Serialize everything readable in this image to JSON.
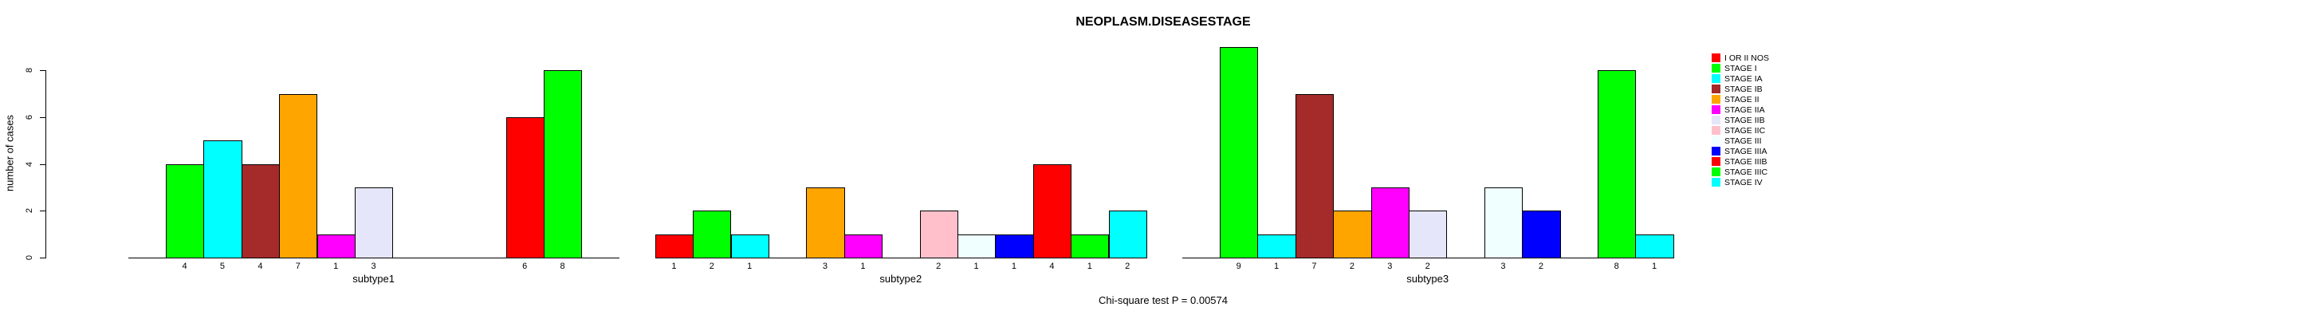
{
  "chart_data": {
    "type": "bar",
    "title": "NEOPLASM.DISEASESTAGE",
    "ylabel": "number of cases",
    "xlabel": "",
    "ylim": [
      0,
      9
    ],
    "yticks": [
      0,
      2,
      4,
      6,
      8
    ],
    "grid": false,
    "legend_position": "right",
    "bar_value_labels_shown": true,
    "categories": [
      "I OR II NOS",
      "STAGE I",
      "STAGE IA",
      "STAGE IB",
      "STAGE II",
      "STAGE IIA",
      "STAGE IIB",
      "STAGE IIC",
      "STAGE III",
      "STAGE IIIA",
      "STAGE IIIB",
      "STAGE IIIC",
      "STAGE IV"
    ],
    "colors": [
      "#FF0000",
      "#00FF00",
      "#00FFFF",
      "#A52A2A",
      "#FFA500",
      "#FF00FF",
      "#E6E6FA",
      "#FFC0CB",
      "#F0FFFF",
      "#0000FF",
      "#FF0000",
      "#00FF00",
      "#00FFFF"
    ],
    "series": [
      {
        "name": "subtype1",
        "values": [
          0,
          4,
          5,
          4,
          7,
          1,
          3,
          0,
          0,
          0,
          6,
          8,
          0
        ]
      },
      {
        "name": "subtype2",
        "values": [
          1,
          2,
          1,
          0,
          3,
          1,
          0,
          2,
          1,
          1,
          4,
          1,
          2
        ]
      },
      {
        "name": "subtype3",
        "values": [
          0,
          9,
          1,
          7,
          2,
          3,
          2,
          0,
          3,
          2,
          0,
          8,
          1
        ]
      }
    ],
    "footnote": "Chi-square test P = 0.00574"
  },
  "legend": {
    "entries": [
      "I OR II NOS",
      "STAGE I",
      "STAGE IA",
      "STAGE IB",
      "STAGE II",
      "STAGE IIA",
      "STAGE IIB",
      "STAGE IIC",
      "STAGE III",
      "STAGE IIIA",
      "STAGE IIIB",
      "STAGE IIIC",
      "STAGE IV"
    ]
  }
}
